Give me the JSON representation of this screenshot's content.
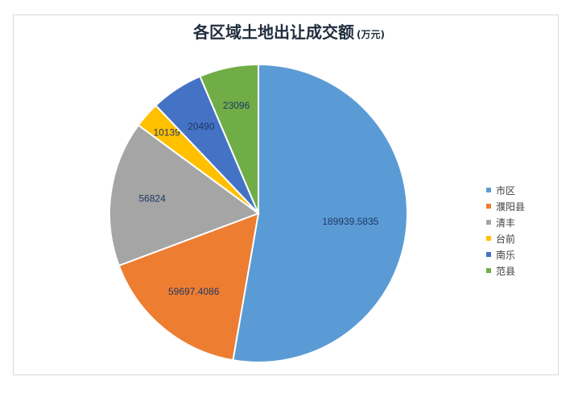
{
  "chart_data": {
    "type": "pie",
    "title": "各区域土地出让成交额",
    "unit": "(万元)",
    "categories": [
      "市区",
      "濮阳县",
      "清丰",
      "台前",
      "南乐",
      "范县"
    ],
    "values": [
      189939.5835,
      59697.4086,
      56824,
      10139,
      20490,
      23096
    ],
    "labels": [
      "189939.5835",
      "59697.4086",
      "56824",
      "10139",
      "20490",
      "23096"
    ],
    "colors": [
      "#5b9bd5",
      "#ed7d31",
      "#a5a5a5",
      "#ffc000",
      "#4472c4",
      "#70ad47"
    ],
    "legend_position": "right",
    "start_angle": "12 o'clock",
    "direction": "clockwise"
  }
}
